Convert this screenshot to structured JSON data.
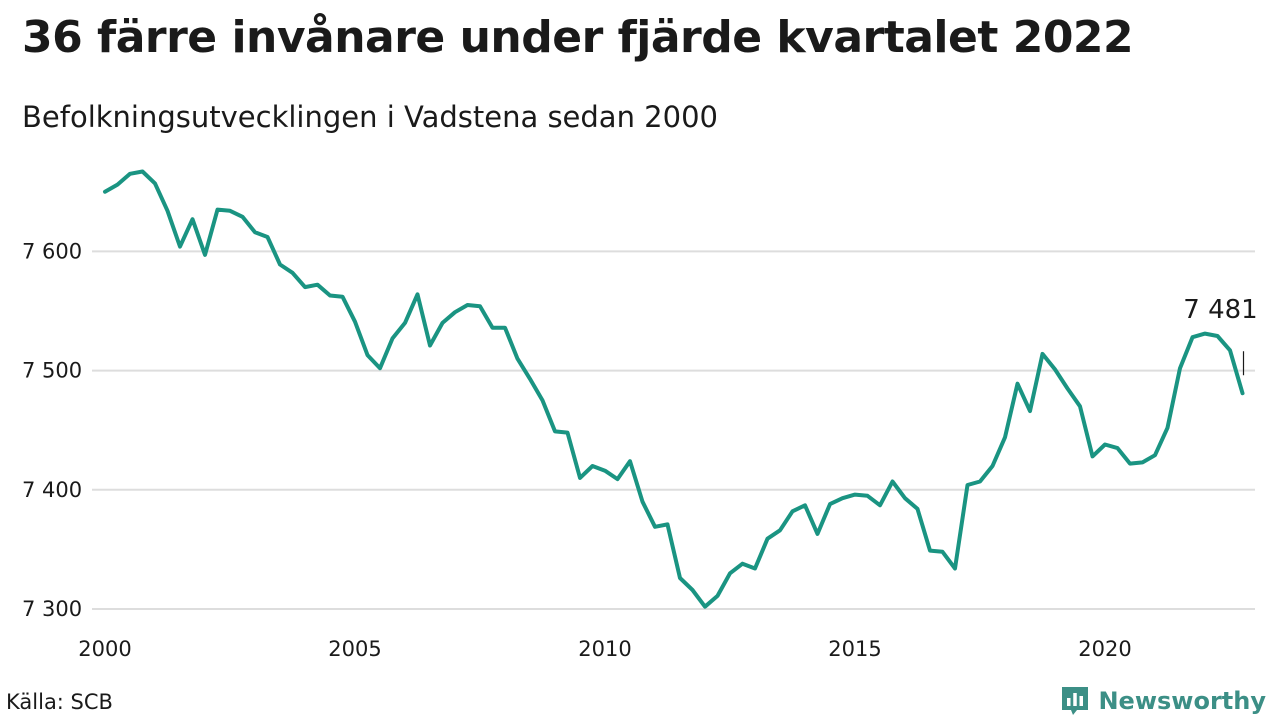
{
  "header": {
    "title": "36 färre invånare under fjärde kvartalet 2022",
    "subtitle": "Befolkningsutvecklingen i Vadstena sedan 2000"
  },
  "footer": {
    "source": "Källa: SCB",
    "brand": "Newsworthy"
  },
  "colors": {
    "line": "#1a9482",
    "grid": "#dddddd",
    "brand": "#3c8f86"
  },
  "chart_data": {
    "type": "line",
    "title": "36 färre invånare under fjärde kvartalet 2022",
    "subtitle": "Befolkningsutvecklingen i Vadstena sedan 2000",
    "xlabel": "",
    "ylabel": "",
    "x_ticks": [
      "2000",
      "2005",
      "2010",
      "2015",
      "2020"
    ],
    "y_ticks": [
      "7 300",
      "7 400",
      "7 500",
      "7 600"
    ],
    "xlim": [
      2000,
      2023
    ],
    "ylim": [
      7295,
      7685
    ],
    "grid": "horizontal",
    "legend": "none",
    "end_label": "7 481",
    "series": [
      {
        "x": [
          2000.0,
          2000.25,
          2000.5,
          2000.75,
          2001.0,
          2001.25,
          2001.5,
          2001.75,
          2002.0,
          2002.25,
          2002.5,
          2002.75,
          2003.0,
          2003.25,
          2003.5,
          2003.75,
          2004.0,
          2004.25,
          2004.5,
          2004.75,
          2005.0,
          2005.25,
          2005.5,
          2005.75,
          2006.0,
          2006.25,
          2006.5,
          2006.75,
          2007.0,
          2007.25,
          2007.5,
          2007.75,
          2008.0,
          2008.25,
          2008.5,
          2008.75,
          2009.0,
          2009.25,
          2009.5,
          2009.75,
          2010.0,
          2010.25,
          2010.5,
          2010.75,
          2011.0,
          2011.25,
          2011.5,
          2011.75,
          2012.0,
          2012.25,
          2012.5,
          2012.75,
          2013.0,
          2013.25,
          2013.5,
          2013.75,
          2014.0,
          2014.25,
          2014.5,
          2014.75,
          2015.0,
          2015.25,
          2015.5,
          2015.75,
          2016.0,
          2016.25,
          2016.5,
          2016.75,
          2017.0,
          2017.25,
          2017.5,
          2017.75,
          2018.0,
          2018.25,
          2018.5,
          2018.75,
          2019.0,
          2019.25,
          2019.5,
          2019.75,
          2020.0,
          2020.25,
          2020.5,
          2020.75,
          2021.0,
          2021.25,
          2021.5,
          2021.75,
          2022.0,
          2022.25,
          2022.5,
          2022.75
        ],
        "values": [
          7650,
          7656,
          7665,
          7667,
          7657,
          7634,
          7604,
          7627,
          7597,
          7635,
          7634,
          7629,
          7616,
          7612,
          7589,
          7582,
          7570,
          7572,
          7563,
          7562,
          7541,
          7513,
          7502,
          7527,
          7540,
          7564,
          7521,
          7540,
          7549,
          7555,
          7554,
          7536,
          7536,
          7510,
          7493,
          7475,
          7449,
          7448,
          7410,
          7420,
          7416,
          7409,
          7424,
          7390,
          7369,
          7371,
          7326,
          7316,
          7302,
          7311,
          7330,
          7338,
          7334,
          7359,
          7366,
          7382,
          7387,
          7363,
          7388,
          7393,
          7396,
          7395,
          7387,
          7407,
          7393,
          7384,
          7349,
          7348,
          7334,
          7404,
          7407,
          7420,
          7444,
          7489,
          7466,
          7514,
          7501,
          7485,
          7470,
          7428,
          7438,
          7435,
          7422,
          7423,
          7429,
          7452,
          7502,
          7528,
          7531,
          7529,
          7517,
          7481
        ]
      }
    ]
  }
}
